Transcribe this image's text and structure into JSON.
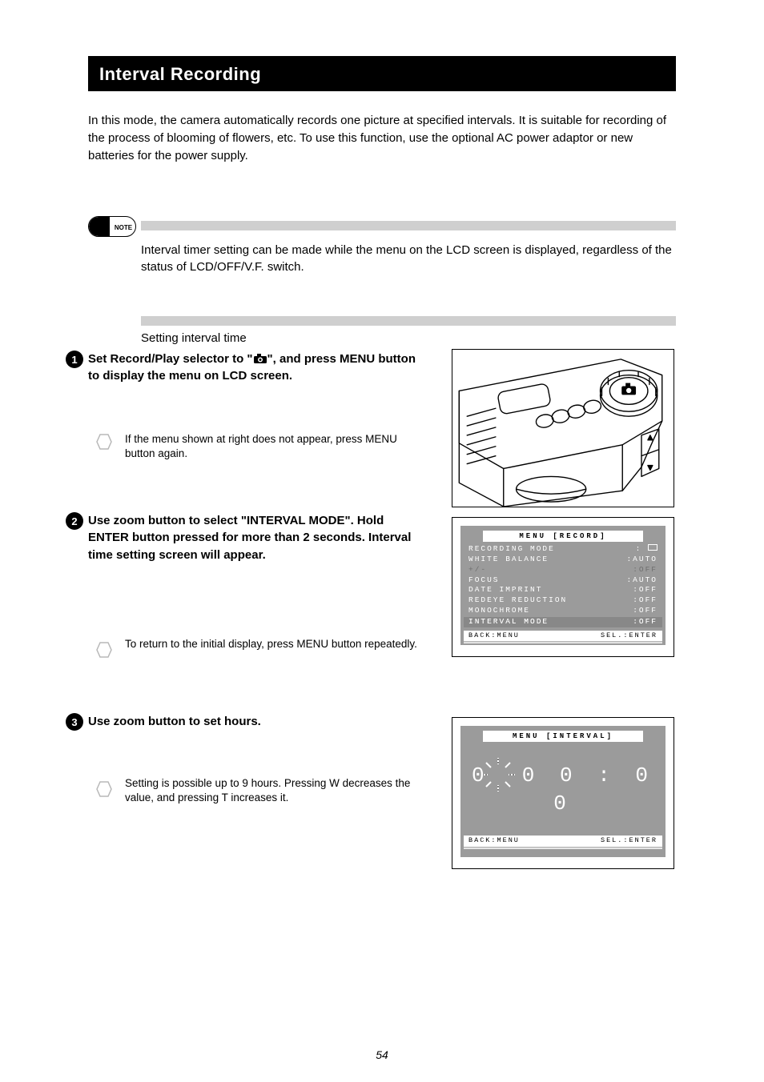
{
  "header_title": "Interval Recording",
  "intro_text": "In this mode, the camera automatically records one picture at specified intervals. It is suitable for recording of the process of blooming of flowers, etc. To use this function, use the optional AC power adaptor or new batteries for the power supply.",
  "note_pill_label": "NOTE",
  "note_text": "Interval timer setting can be made while the menu on the LCD screen is displayed, regardless of the status of LCD/OFF/V.F. switch.",
  "section_title": "Setting interval time",
  "steps": {
    "s1": {
      "main_pre": "Set Record/Play selector to \"",
      "main_post": "\", and press MENU button to display the menu on LCD screen.",
      "sub": "If the menu shown at right does not appear, press MENU button again."
    },
    "s2": {
      "main": "Use zoom button to select \"INTERVAL MODE\". Hold ENTER button pressed for more than 2 seconds. Interval time setting screen will appear.",
      "sub": "To return to the initial display, press MENU button repeatedly."
    },
    "s3": {
      "main": "Use zoom button to set hours.",
      "sub": "Setting is possible up to 9 hours. Pressing W decreases the value, and pressing T increases it."
    }
  },
  "camera_icon_name": "camera-icon",
  "lcd1": {
    "title": "MENU [RECORD]",
    "rows": [
      {
        "k": "RECORDING MODE",
        "v": ":",
        "square": true
      },
      {
        "k": "WHITE BALANCE",
        "v": ":AUTO"
      },
      {
        "k": "+/-",
        "v": ":OFF",
        "dim": true
      },
      {
        "k": "FOCUS",
        "v": ":AUTO"
      },
      {
        "k": "DATE IMPRINT",
        "v": ":OFF"
      },
      {
        "k": "REDEYE REDUCTION",
        "v": ":OFF"
      },
      {
        "k": "MONOCHROME",
        "v": ":OFF"
      },
      {
        "k": "INTERVAL MODE",
        "v": ":OFF",
        "hl": true
      }
    ],
    "back": "BACK:MENU",
    "sel": "SEL.:ENTER"
  },
  "lcd2": {
    "title": "MENU [INTERVAL]",
    "time_hours": "0",
    "time_mid": "0 0",
    "time_sec": "0 0",
    "back": "BACK:MENU",
    "sel": "SEL.:ENTER"
  },
  "page_number": "54",
  "colors": {
    "black": "#000000",
    "white": "#ffffff",
    "gray_bar": "#cfcfcf",
    "lcd_bg": "#9b9b9b",
    "lcd_dim": "#6f6f6f"
  }
}
